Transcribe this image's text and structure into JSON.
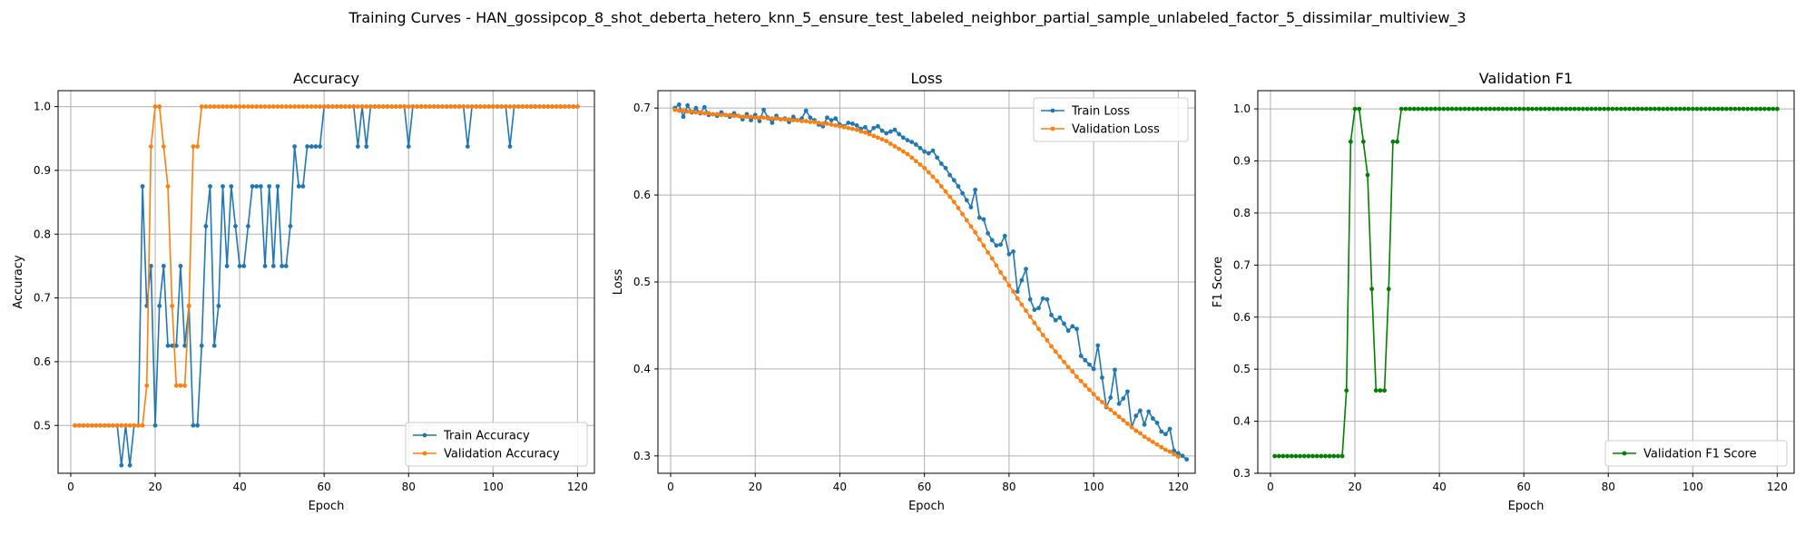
{
  "suptitle": "Training Curves - HAN_gossipcop_8_shot_deberta_hetero_knn_5_ensure_test_labeled_neighbor_partial_sample_unlabeled_factor_5_dissimilar_multiview_3",
  "colors": {
    "train": "#1f77b4",
    "val": "#ff7f0e",
    "f1": "#008000"
  },
  "chart_data": [
    {
      "id": "accuracy",
      "type": "line",
      "title": "Accuracy",
      "xlabel": "Epoch",
      "ylabel": "Accuracy",
      "xlim": [
        -3,
        124
      ],
      "ylim": [
        0.425,
        1.025
      ],
      "xticks": [
        0,
        20,
        40,
        60,
        80,
        100,
        120
      ],
      "yticks": [
        0.5,
        0.6,
        0.7,
        0.8,
        0.9,
        1.0
      ],
      "ytick_labels": [
        "0.5",
        "0.6",
        "0.7",
        "0.8",
        "0.9",
        "1.0"
      ],
      "grid": true,
      "legend_loc": "lower-right",
      "series": [
        {
          "name": "Train Accuracy",
          "color_key": "train",
          "x_start": 1,
          "values": [
            0.5,
            0.5,
            0.5,
            0.5,
            0.5,
            0.5,
            0.5,
            0.5,
            0.5,
            0.5,
            0.5,
            0.4375,
            0.5,
            0.4375,
            0.5,
            0.5,
            0.875,
            0.6875,
            0.75,
            0.5,
            0.6875,
            0.75,
            0.625,
            0.625,
            0.625,
            0.75,
            0.625,
            0.6875,
            0.5,
            0.5,
            0.625,
            0.8125,
            0.875,
            0.625,
            0.6875,
            0.875,
            0.75,
            0.875,
            0.8125,
            0.75,
            0.75,
            0.8125,
            0.875,
            0.875,
            0.875,
            0.75,
            0.875,
            0.75,
            0.875,
            0.75,
            0.75,
            0.8125,
            0.9375,
            0.875,
            0.875,
            0.9375,
            0.9375,
            0.9375,
            0.9375,
            1.0,
            1.0,
            1.0,
            1.0,
            1.0,
            1.0,
            1.0,
            1.0,
            0.9375,
            1.0,
            0.9375,
            1.0,
            1.0,
            1.0,
            1.0,
            1.0,
            1.0,
            1.0,
            1.0,
            1.0,
            0.9375,
            1.0,
            1.0,
            1.0,
            1.0,
            1.0,
            1.0,
            1.0,
            1.0,
            1.0,
            1.0,
            1.0,
            1.0,
            1.0,
            0.9375,
            1.0,
            1.0,
            1.0,
            1.0,
            1.0,
            1.0,
            1.0,
            1.0,
            1.0,
            0.9375,
            1.0,
            1.0,
            1.0,
            1.0,
            1.0,
            1.0,
            1.0,
            1.0,
            1.0,
            1.0,
            1.0,
            1.0,
            1.0,
            1.0,
            1.0,
            1.0
          ]
        },
        {
          "name": "Validation Accuracy",
          "color_key": "val",
          "x_start": 1,
          "values": [
            0.5,
            0.5,
            0.5,
            0.5,
            0.5,
            0.5,
            0.5,
            0.5,
            0.5,
            0.5,
            0.5,
            0.5,
            0.5,
            0.5,
            0.5,
            0.5,
            0.5,
            0.5625,
            0.9375,
            1.0,
            1.0,
            0.9375,
            0.875,
            0.6875,
            0.5625,
            0.5625,
            0.5625,
            0.6875,
            0.9375,
            0.9375,
            1.0,
            1.0,
            1.0,
            1.0,
            1.0,
            1.0,
            1.0,
            1.0,
            1.0,
            1.0,
            1.0,
            1.0,
            1.0,
            1.0,
            1.0,
            1.0,
            1.0,
            1.0,
            1.0,
            1.0,
            1.0,
            1.0,
            1.0,
            1.0,
            1.0,
            1.0,
            1.0,
            1.0,
            1.0,
            1.0,
            1.0,
            1.0,
            1.0,
            1.0,
            1.0,
            1.0,
            1.0,
            1.0,
            1.0,
            1.0,
            1.0,
            1.0,
            1.0,
            1.0,
            1.0,
            1.0,
            1.0,
            1.0,
            1.0,
            1.0,
            1.0,
            1.0,
            1.0,
            1.0,
            1.0,
            1.0,
            1.0,
            1.0,
            1.0,
            1.0,
            1.0,
            1.0,
            1.0,
            1.0,
            1.0,
            1.0,
            1.0,
            1.0,
            1.0,
            1.0,
            1.0,
            1.0,
            1.0,
            1.0,
            1.0,
            1.0,
            1.0,
            1.0,
            1.0,
            1.0,
            1.0,
            1.0,
            1.0,
            1.0,
            1.0,
            1.0,
            1.0,
            1.0,
            1.0,
            1.0
          ]
        }
      ]
    },
    {
      "id": "loss",
      "type": "line",
      "title": "Loss",
      "xlabel": "Epoch",
      "ylabel": "Loss",
      "xlim": [
        -3,
        124
      ],
      "ylim": [
        0.28,
        0.72
      ],
      "xticks": [
        0,
        20,
        40,
        60,
        80,
        100,
        120
      ],
      "yticks": [
        0.3,
        0.4,
        0.5,
        0.6,
        0.7
      ],
      "ytick_labels": [
        "0.3",
        "0.4",
        "0.5",
        "0.6",
        "0.7"
      ],
      "grid": true,
      "legend_loc": "upper-right",
      "series": [
        {
          "name": "Train Loss",
          "color_key": "train",
          "x_start": 1,
          "values": [
            0.7,
            0.704,
            0.69,
            0.703,
            0.695,
            0.7,
            0.694,
            0.701,
            0.692,
            0.693,
            0.691,
            0.695,
            0.692,
            0.69,
            0.694,
            0.691,
            0.687,
            0.693,
            0.686,
            0.692,
            0.685,
            0.698,
            0.689,
            0.683,
            0.691,
            0.687,
            0.688,
            0.684,
            0.69,
            0.686,
            0.688,
            0.697,
            0.689,
            0.686,
            0.681,
            0.679,
            0.689,
            0.686,
            0.688,
            0.681,
            0.679,
            0.683,
            0.682,
            0.68,
            0.676,
            0.678,
            0.672,
            0.677,
            0.679,
            0.674,
            0.671,
            0.673,
            0.675,
            0.67,
            0.666,
            0.663,
            0.661,
            0.658,
            0.654,
            0.65,
            0.648,
            0.651,
            0.643,
            0.636,
            0.631,
            0.623,
            0.617,
            0.61,
            0.602,
            0.594,
            0.586,
            0.606,
            0.574,
            0.572,
            0.556,
            0.548,
            0.542,
            0.543,
            0.553,
            0.532,
            0.535,
            0.489,
            0.502,
            0.515,
            0.48,
            0.468,
            0.47,
            0.481,
            0.48,
            0.462,
            0.456,
            0.459,
            0.452,
            0.444,
            0.449,
            0.446,
            0.415,
            0.41,
            0.405,
            0.4,
            0.427,
            0.39,
            0.356,
            0.367,
            0.399,
            0.36,
            0.366,
            0.374,
            0.333,
            0.346,
            0.352,
            0.336,
            0.351,
            0.343,
            0.338,
            0.328,
            0.325,
            0.331,
            0.306,
            0.303,
            0.3,
            0.296
          ]
        },
        {
          "name": "Validation Loss",
          "color_key": "val",
          "x_start": 1,
          "values": [
            0.698,
            0.697,
            0.697,
            0.696,
            0.696,
            0.695,
            0.695,
            0.694,
            0.694,
            0.693,
            0.693,
            0.692,
            0.692,
            0.692,
            0.691,
            0.691,
            0.69,
            0.69,
            0.69,
            0.689,
            0.689,
            0.689,
            0.688,
            0.688,
            0.688,
            0.687,
            0.687,
            0.687,
            0.686,
            0.686,
            0.685,
            0.685,
            0.684,
            0.684,
            0.683,
            0.682,
            0.682,
            0.681,
            0.68,
            0.679,
            0.678,
            0.677,
            0.676,
            0.675,
            0.673,
            0.672,
            0.67,
            0.668,
            0.666,
            0.664,
            0.662,
            0.659,
            0.656,
            0.653,
            0.65,
            0.647,
            0.643,
            0.639,
            0.635,
            0.631,
            0.626,
            0.621,
            0.616,
            0.61,
            0.604,
            0.598,
            0.592,
            0.585,
            0.578,
            0.571,
            0.564,
            0.557,
            0.549,
            0.542,
            0.534,
            0.527,
            0.519,
            0.511,
            0.504,
            0.496,
            0.489,
            0.481,
            0.474,
            0.467,
            0.46,
            0.453,
            0.446,
            0.439,
            0.433,
            0.426,
            0.42,
            0.414,
            0.408,
            0.402,
            0.397,
            0.391,
            0.386,
            0.381,
            0.376,
            0.371,
            0.366,
            0.362,
            0.357,
            0.353,
            0.349,
            0.345,
            0.341,
            0.337,
            0.333,
            0.329,
            0.326,
            0.322,
            0.319,
            0.316,
            0.313,
            0.31,
            0.307,
            0.305,
            0.302,
            0.299
          ]
        }
      ]
    },
    {
      "id": "f1",
      "type": "line",
      "title": "Validation F1",
      "xlabel": "Epoch",
      "ylabel": "F1 Score",
      "xlim": [
        -3,
        124
      ],
      "ylim": [
        0.3,
        1.035
      ],
      "xticks": [
        0,
        20,
        40,
        60,
        80,
        100,
        120
      ],
      "yticks": [
        0.3,
        0.4,
        0.5,
        0.6,
        0.7,
        0.8,
        0.9,
        1.0
      ],
      "ytick_labels": [
        "0.3",
        "0.4",
        "0.5",
        "0.6",
        "0.7",
        "0.8",
        "0.9",
        "1.0"
      ],
      "grid": true,
      "legend_loc": "lower-right",
      "series": [
        {
          "name": "Validation F1 Score",
          "color_key": "f1",
          "x_start": 1,
          "values": [
            0.333,
            0.333,
            0.333,
            0.333,
            0.333,
            0.333,
            0.333,
            0.333,
            0.333,
            0.333,
            0.333,
            0.333,
            0.333,
            0.333,
            0.333,
            0.333,
            0.333,
            0.459,
            0.937,
            1.0,
            1.0,
            0.937,
            0.873,
            0.654,
            0.459,
            0.459,
            0.459,
            0.654,
            0.937,
            0.937,
            1.0,
            1.0,
            1.0,
            1.0,
            1.0,
            1.0,
            1.0,
            1.0,
            1.0,
            1.0,
            1.0,
            1.0,
            1.0,
            1.0,
            1.0,
            1.0,
            1.0,
            1.0,
            1.0,
            1.0,
            1.0,
            1.0,
            1.0,
            1.0,
            1.0,
            1.0,
            1.0,
            1.0,
            1.0,
            1.0,
            1.0,
            1.0,
            1.0,
            1.0,
            1.0,
            1.0,
            1.0,
            1.0,
            1.0,
            1.0,
            1.0,
            1.0,
            1.0,
            1.0,
            1.0,
            1.0,
            1.0,
            1.0,
            1.0,
            1.0,
            1.0,
            1.0,
            1.0,
            1.0,
            1.0,
            1.0,
            1.0,
            1.0,
            1.0,
            1.0,
            1.0,
            1.0,
            1.0,
            1.0,
            1.0,
            1.0,
            1.0,
            1.0,
            1.0,
            1.0,
            1.0,
            1.0,
            1.0,
            1.0,
            1.0,
            1.0,
            1.0,
            1.0,
            1.0,
            1.0,
            1.0,
            1.0,
            1.0,
            1.0,
            1.0,
            1.0,
            1.0,
            1.0,
            1.0,
            1.0
          ]
        }
      ]
    }
  ]
}
